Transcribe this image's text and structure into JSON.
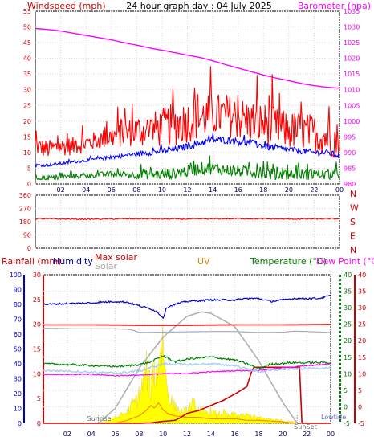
{
  "chart_data": [
    {
      "type": "line",
      "title": "24 hour graph day : 04 July 2025",
      "left_axis": {
        "label": "Windspeed (mph)",
        "range": [
          0,
          55
        ],
        "ticks": [
          0,
          5,
          10,
          15,
          20,
          25,
          30,
          35,
          40,
          45,
          50,
          55
        ]
      },
      "right_axis": {
        "label": "Barometer (hpa)",
        "range": [
          980,
          1035
        ],
        "ticks": [
          980,
          985,
          990,
          995,
          1000,
          1005,
          1010,
          1015,
          1020,
          1025,
          1030,
          1035
        ]
      },
      "x_ticks": [
        "02",
        "04",
        "06",
        "08",
        "10",
        "12",
        "14",
        "16",
        "18",
        "20",
        "22",
        "00"
      ],
      "grid": true,
      "series": [
        {
          "role": "barometer",
          "color": "#ff00ff",
          "axis": "right",
          "hours": [
            0,
            1,
            2,
            3,
            4,
            5,
            6,
            7,
            8,
            9,
            10,
            11,
            12,
            13,
            14,
            15,
            16,
            17,
            18,
            19,
            20,
            21,
            22,
            23,
            24
          ],
          "values": [
            1029.5,
            1029.2,
            1028.7,
            1028,
            1027.3,
            1026.6,
            1025.9,
            1025,
            1024.2,
            1023.3,
            1022.6,
            1021.8,
            1021,
            1020.3,
            1019.2,
            1018,
            1016.9,
            1015.8,
            1014.7,
            1013.7,
            1012.9,
            1012,
            1011.3,
            1010.8,
            1010.5
          ]
        },
        {
          "role": "gust",
          "color": "#ff0000",
          "axis": "left",
          "hours": [
            0,
            1,
            2,
            3,
            4,
            5,
            6,
            7,
            8,
            9,
            10,
            11,
            12,
            13,
            14,
            15,
            16,
            17,
            18,
            19,
            20,
            21,
            22,
            23,
            24
          ],
          "values": [
            12,
            11,
            12,
            12,
            13,
            14,
            15,
            16,
            17,
            17,
            18,
            19,
            20,
            21,
            22,
            22,
            21,
            20,
            19,
            18,
            17,
            17,
            16,
            15,
            14
          ],
          "noise": 5
        },
        {
          "role": "average",
          "color": "#0000ff",
          "axis": "left",
          "hours": [
            0,
            1,
            2,
            3,
            4,
            5,
            6,
            7,
            8,
            9,
            10,
            11,
            12,
            13,
            14,
            15,
            16,
            17,
            18,
            19,
            20,
            21,
            22,
            23,
            24
          ],
          "values": [
            6,
            6,
            6.5,
            7,
            7.5,
            8,
            8.5,
            9,
            9.5,
            10,
            10.5,
            11,
            12,
            13,
            14,
            14,
            13.5,
            13,
            12,
            11.5,
            11,
            10.5,
            10,
            10,
            9
          ],
          "noise": 0.8
        },
        {
          "role": "minimum",
          "color": "#008000",
          "axis": "left",
          "hours": [
            0,
            1,
            2,
            3,
            4,
            5,
            6,
            7,
            8,
            9,
            10,
            11,
            12,
            13,
            14,
            15,
            16,
            17,
            18,
            19,
            20,
            21,
            22,
            23,
            24
          ],
          "values": [
            2,
            2,
            2,
            2.5,
            2.5,
            3,
            3,
            3,
            3,
            3,
            3,
            3.5,
            4,
            5,
            5,
            4.5,
            4,
            4,
            3.5,
            3,
            3,
            3,
            3,
            3,
            3
          ],
          "noise": 1.4
        }
      ]
    },
    {
      "type": "line",
      "left_axis": {
        "label": "",
        "range": [
          0,
          360
        ],
        "ticks": [
          0,
          90,
          180,
          270,
          360
        ],
        "tick_labels": [
          "0",
          "90",
          "180",
          "270",
          "360"
        ]
      },
      "right_labels": [
        "N",
        "W",
        "S",
        "E",
        "N"
      ],
      "x_ticks": [],
      "grid": true,
      "series": [
        {
          "role": "wind-direction",
          "color": "#ff0000",
          "hours": [
            0,
            4,
            8,
            12,
            16,
            20,
            24
          ],
          "values": [
            200,
            197,
            200,
            198,
            201,
            198,
            200
          ],
          "noise": 4
        }
      ]
    },
    {
      "type": "line",
      "header_labels": {
        "rainfall": "Rainfall (mm)",
        "humidity": "Humidity",
        "max_solar": "Max solar",
        "solar": "Solar",
        "uv": "UV",
        "temperature": "Temperature (°C)",
        "dew_point": "Dew Point (°C)"
      },
      "axes": {
        "humidity_pct": {
          "range": [
            0,
            100
          ],
          "ticks": [
            0,
            10,
            20,
            30,
            40,
            50,
            60,
            70,
            80,
            90,
            100
          ]
        },
        "rainfall_mm": {
          "range": [
            0,
            30
          ],
          "ticks": [
            0,
            5,
            10,
            15,
            20,
            25,
            30
          ]
        },
        "temperature_c": {
          "range": [
            -5,
            40
          ],
          "ticks": [
            -5,
            0,
            5,
            10,
            15,
            20,
            25,
            30,
            35,
            40
          ]
        },
        "dewpoint_c": {
          "range": [
            -5,
            40
          ],
          "ticks": [
            -5,
            0,
            5,
            10,
            15,
            20,
            25,
            30,
            35,
            40
          ]
        }
      },
      "x_ticks": [
        "02",
        "04",
        "06",
        "08",
        "10",
        "12",
        "14",
        "16",
        "18",
        "20",
        "22",
        "00"
      ],
      "annotations": {
        "sunrise": "Sunrise",
        "sunset": "SunSet",
        "lowtide": "Lowtide"
      },
      "event_hours": {
        "sunrise": 4.6,
        "sunset": 21.2
      },
      "grid": true,
      "series": [
        {
          "role": "humidity",
          "color": "#0000cc",
          "axis": "humidity_pct",
          "hours": [
            0,
            2,
            4,
            6,
            7,
            8,
            9,
            9.5,
            10,
            10.3,
            11,
            12,
            14,
            16,
            17,
            18,
            19,
            20,
            21,
            22,
            23,
            24
          ],
          "values": [
            80,
            80.5,
            81,
            82,
            81.5,
            79,
            77,
            75,
            71,
            78,
            80,
            82,
            83,
            83,
            84,
            84,
            82,
            83,
            84,
            84,
            84,
            86
          ],
          "noise": 0.6
        },
        {
          "role": "max-solar-line",
          "color": "#cc0000",
          "axis": "temperature_c",
          "hours": [
            0,
            4,
            8,
            12,
            16,
            20,
            24
          ],
          "values": [
            24.8,
            24.8,
            24.7,
            24.7,
            24.8,
            24.8,
            24.9
          ]
        },
        {
          "role": "solar-light",
          "color": "#aaaaaa",
          "axis": "temperature_c",
          "hours": [
            0,
            3,
            6,
            7,
            7.5,
            8,
            10,
            12,
            14,
            16,
            18,
            20,
            21,
            22,
            24
          ],
          "values": [
            23.8,
            23.6,
            23.6,
            23.5,
            23.2,
            22.5,
            22.6,
            22.7,
            22.8,
            22.8,
            22.5,
            22.6,
            22.9,
            22.8,
            22.5
          ]
        },
        {
          "role": "temperature",
          "color": "#008000",
          "axis": "temperature_c",
          "hours": [
            0,
            2,
            4,
            5,
            6,
            7,
            8,
            9,
            10,
            11,
            12,
            13,
            14,
            15,
            16,
            17,
            18,
            19,
            20,
            21,
            22,
            23,
            24
          ],
          "values": [
            13,
            12.8,
            12.5,
            12.3,
            12.2,
            12.4,
            12.8,
            13.6,
            15.5,
            13.6,
            14.4,
            14.8,
            15.1,
            14.6,
            14.2,
            13,
            11.6,
            12.9,
            13.2,
            13.4,
            13.3,
            13.4,
            13.4
          ],
          "noise": 0.3
        },
        {
          "role": "apparent",
          "color": "#99ccee",
          "axis": "temperature_c",
          "hours": [
            0,
            2,
            4,
            6,
            8,
            10,
            12,
            14,
            16,
            17,
            18,
            20,
            22,
            24
          ],
          "values": [
            11,
            10.8,
            10.5,
            10.2,
            10.8,
            13,
            12.8,
            13,
            12.5,
            11.5,
            10.6,
            11.3,
            11.6,
            11.8
          ],
          "noise": 0.3
        },
        {
          "role": "dew-point",
          "color": "#ff00ff",
          "axis": "dewpoint_c",
          "hours": [
            0,
            4,
            6,
            8,
            10,
            12,
            14,
            16,
            18,
            20,
            22,
            24
          ],
          "values": [
            9.8,
            9.8,
            9.4,
            9.6,
            10,
            10.1,
            10.6,
            10.9,
            11,
            11.8,
            12.4,
            13
          ],
          "noise": 0.15
        },
        {
          "role": "max-solar",
          "color": "#b0b0b0",
          "axis": "humidity_pct",
          "hours": [
            4.6,
            6,
            8,
            10,
            12,
            13.2,
            14,
            16,
            18,
            20,
            21.2
          ],
          "values": [
            0,
            10,
            37,
            58,
            72,
            75,
            74,
            65,
            42,
            14,
            0
          ]
        },
        {
          "role": "solar",
          "color": "#ffff00",
          "axis": "humidity_pct",
          "fill": true,
          "hours": [
            4.6,
            5,
            5.5,
            6,
            6.5,
            7,
            7.5,
            8,
            8.3,
            8.6,
            9,
            9.2,
            9.4,
            9.7,
            10,
            10.2,
            10.5,
            10.8,
            11,
            11.5,
            12,
            12.5,
            13,
            13.5,
            14,
            14.5,
            15,
            15.5,
            16,
            16.5,
            17,
            17.5,
            18,
            19,
            20,
            21,
            21.2
          ],
          "values": [
            0,
            1,
            2,
            4,
            6,
            8,
            14,
            20,
            28,
            40,
            22,
            45,
            30,
            55,
            60,
            35,
            20,
            14,
            12,
            8,
            9,
            14,
            10,
            7,
            9,
            6,
            8,
            5,
            7,
            5,
            6,
            5,
            4,
            3,
            2,
            1,
            0
          ]
        },
        {
          "role": "uv",
          "color": "#ff8800",
          "axis": "humidity_pct",
          "hours": [
            6,
            7,
            8,
            8.5,
            9,
            9.3,
            9.6,
            10,
            10.5,
            11,
            12,
            13,
            14,
            15,
            16,
            17,
            18,
            20,
            21
          ],
          "values": [
            0,
            2,
            5,
            8,
            12,
            10,
            14,
            9,
            6,
            5,
            4,
            4,
            3,
            3,
            3,
            2,
            2,
            1,
            0
          ]
        },
        {
          "role": "rainfall",
          "color": "#cc0000",
          "axis": "rainfall_mm",
          "hours": [
            0,
            6,
            8,
            9,
            10,
            11,
            11.5,
            12,
            13,
            14,
            15,
            16,
            17,
            17.2,
            17.4,
            17.6,
            17.7,
            21.5,
            21.55,
            24
          ],
          "values": [
            0,
            0,
            0,
            0.1,
            0.4,
            0.6,
            1.2,
            2,
            2.6,
            3.6,
            4.6,
            5.9,
            7.4,
            9,
            10.5,
            11.3,
            11.3,
            11.3,
            0,
            0
          ]
        }
      ]
    }
  ]
}
